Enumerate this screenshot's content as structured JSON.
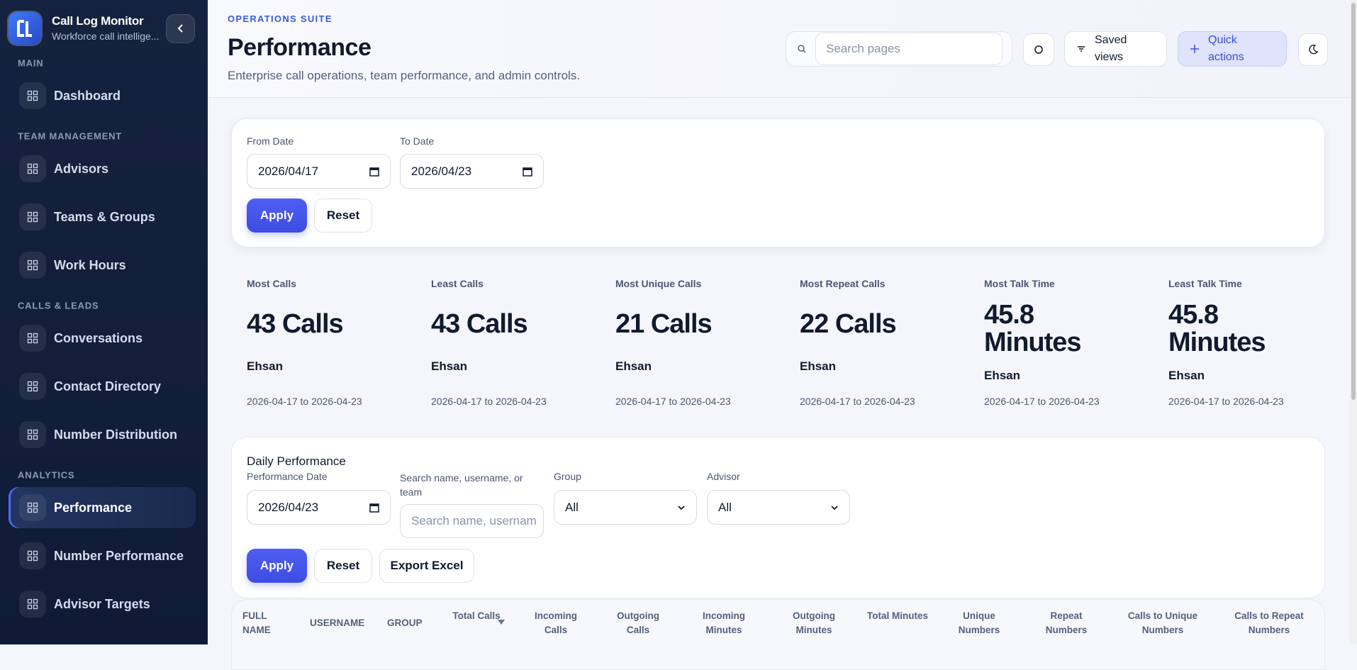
{
  "sidebar": {
    "app_name": "Call Log Monitor",
    "app_subtitle": "Workforce call intellige...",
    "sections": [
      {
        "title": "MAIN",
        "items": [
          "Dashboard"
        ]
      },
      {
        "title": "TEAM MANAGEMENT",
        "items": [
          "Advisors",
          "Teams & Groups",
          "Work Hours"
        ]
      },
      {
        "title": "CALLS & LEADS",
        "items": [
          "Conversations",
          "Contact Directory",
          "Number Distribution"
        ]
      },
      {
        "title": "ANALYTICS",
        "items": [
          "Performance",
          "Number Performance",
          "Advisor Targets"
        ]
      }
    ]
  },
  "header": {
    "eyebrow": "OPERATIONS SUITE",
    "title": "Performance",
    "subtitle": "Enterprise call operations, team performance, and admin controls.",
    "search_placeholder": "Search pages",
    "saved_views": "Saved views",
    "quick_actions": "Quick actions"
  },
  "filters": {
    "from_label": "From Date",
    "from_value": "2026/04/17",
    "to_label": "To Date",
    "to_value": "2026/04/23",
    "apply": "Apply",
    "reset": "Reset"
  },
  "stats": [
    {
      "label": "Most Calls",
      "value": "43 Calls",
      "name": "Ehsan",
      "range": "2026-04-17 to 2026-04-23"
    },
    {
      "label": "Least Calls",
      "value": "43 Calls",
      "name": "Ehsan",
      "range": "2026-04-17 to 2026-04-23"
    },
    {
      "label": "Most Unique Calls",
      "value": "21 Calls",
      "name": "Ehsan",
      "range": "2026-04-17 to 2026-04-23"
    },
    {
      "label": "Most Repeat Calls",
      "value": "22 Calls",
      "name": "Ehsan",
      "range": "2026-04-17 to 2026-04-23"
    },
    {
      "label": "Most Talk Time",
      "value": "45.8 Minutes",
      "name": "Ehsan",
      "range": "2026-04-17 to 2026-04-23"
    },
    {
      "label": "Least Talk Time",
      "value": "45.8 Minutes",
      "name": "Ehsan",
      "range": "2026-04-17 to 2026-04-23"
    }
  ],
  "daily_performance": {
    "title": "Daily Performance",
    "date_label": "Performance Date",
    "date_value": "2026/04/23",
    "search_label": "Search name, username, or team",
    "search_placeholder": "Search name, usernam",
    "group_label": "Group",
    "group_value": "All",
    "advisor_label": "Advisor",
    "advisor_value": "All",
    "apply": "Apply",
    "reset": "Reset",
    "export": "Export Excel"
  },
  "table": {
    "columns": [
      "FULL NAME",
      "USERNAME",
      "GROUP",
      "Total Calls",
      "Incoming Calls",
      "Outgoing Calls",
      "Incoming Minutes",
      "Outgoing Minutes",
      "Total Minutes",
      "Unique Numbers",
      "Repeat Numbers",
      "Calls to Unique Numbers",
      "Calls to Repeat Numbers"
    ]
  }
}
